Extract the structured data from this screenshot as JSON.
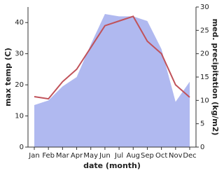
{
  "chart_data": {
    "type": "line",
    "x_label": "date (month)",
    "y_label": "max temp (C)",
    "y2_label": "med. precipitation (kg/m2)",
    "categories": [
      "Jan",
      "Feb",
      "Mar",
      "Apr",
      "May",
      "Jun",
      "Jul",
      "Aug",
      "Sep",
      "Oct",
      "Nov",
      "Dec"
    ],
    "ylim": [
      0,
      45
    ],
    "yticks": [
      0,
      10,
      20,
      30,
      40
    ],
    "y2lim": [
      0,
      30
    ],
    "y2ticks": [
      0,
      5,
      10,
      15,
      20,
      25,
      30
    ],
    "series": [
      {
        "name": "med. precipitation",
        "axis": "y2",
        "kind": "area",
        "color": "#b0b9f0",
        "values": [
          9,
          10,
          13,
          15,
          22,
          28.5,
          28,
          28,
          27,
          21,
          9.7,
          14
        ]
      },
      {
        "name": "max temp",
        "kind": "line",
        "color": "#c0525a",
        "values": [
          16.2,
          15.5,
          21,
          25,
          32,
          39,
          40.5,
          42,
          34,
          30,
          20,
          16
        ]
      }
    ]
  }
}
